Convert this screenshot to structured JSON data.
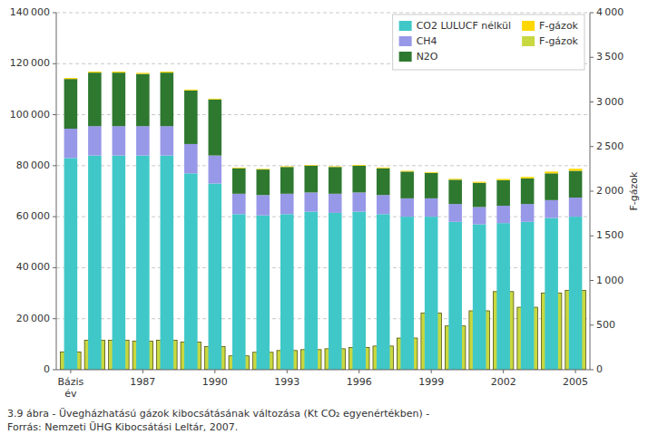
{
  "chart_data": {
    "type": "bar",
    "title": "3.9 ábra - Üvegházhatású gázok kibocsátásának változása (Kt CO₂ egyenértékben) -\nForrás: Nemzeti ÜHG Kibocsátási Leltár, 2007.",
    "y2label": "F-gázok",
    "categories": [
      "Bázis\név",
      null,
      null,
      "1987",
      null,
      null,
      "1990",
      null,
      null,
      "1993",
      null,
      null,
      "1996",
      null,
      null,
      "1999",
      null,
      null,
      "2002",
      null,
      null,
      "2005"
    ],
    "series": [
      {
        "name": "CO2 LULUCF nélkül",
        "color": "#40C8C8",
        "values": [
          83000,
          84000,
          84000,
          84000,
          84000,
          77000,
          73000,
          61000,
          60500,
          61000,
          62000,
          61500,
          62000,
          61000,
          60000,
          60000,
          58000,
          57000,
          57500,
          58000,
          59500,
          60000
        ]
      },
      {
        "name": "CH4",
        "color": "#9898E8",
        "values": [
          11500,
          11500,
          11500,
          11500,
          11500,
          11500,
          11000,
          8000,
          8000,
          8000,
          7500,
          7500,
          7500,
          7500,
          7200,
          7200,
          7000,
          6800,
          6800,
          7000,
          7000,
          7500
        ]
      },
      {
        "name": "N2O",
        "color": "#2E7830",
        "values": [
          19500,
          21000,
          21000,
          20500,
          21000,
          21000,
          22000,
          10000,
          10000,
          10500,
          10500,
          10500,
          10500,
          10500,
          10500,
          10000,
          9500,
          9500,
          10000,
          10000,
          10500,
          10500
        ]
      },
      {
        "name": "F-gázok",
        "color": "#FFD700",
        "values": [
          400,
          400,
          400,
          400,
          400,
          350,
          300,
          250,
          250,
          250,
          250,
          250,
          300,
          300,
          300,
          300,
          350,
          400,
          500,
          600,
          700,
          800
        ]
      },
      {
        "name": "F-gázok",
        "color": "#C8D840",
        "axis": "y2",
        "values": [
          200,
          330,
          330,
          320,
          330,
          310,
          260,
          155,
          195,
          215,
          225,
          235,
          250,
          265,
          355,
          635,
          490,
          660,
          875,
          700,
          860,
          890
        ]
      }
    ],
    "ylim": [
      0,
      140000
    ],
    "yticks": [
      0,
      {
        "value": 20000,
        "label": "20 000"
      },
      {
        "value": 40000,
        "label": "40 000"
      },
      {
        "value": 60000,
        "label": "60 000"
      },
      {
        "value": 80000,
        "label": "80 000"
      },
      {
        "value": 100000,
        "label": "100 000"
      },
      {
        "value": 120000,
        "label": "120 000"
      },
      {
        "value": 140000,
        "label": "140 000"
      }
    ],
    "y2lim": [
      0,
      4000
    ],
    "y2ticks": [
      0,
      500,
      {
        "value": 1000,
        "label": "1 000"
      },
      {
        "value": 1500,
        "label": "1 500"
      },
      {
        "value": 2000,
        "label": "2 000"
      },
      {
        "value": 2500,
        "label": "2 500"
      },
      {
        "value": 3000,
        "label": "3 000"
      },
      {
        "value": 3500,
        "label": "3 500"
      },
      {
        "value": 4000,
        "label": "4 000"
      }
    ],
    "grid": true,
    "legend": "upper right",
    "stacked": true
  }
}
